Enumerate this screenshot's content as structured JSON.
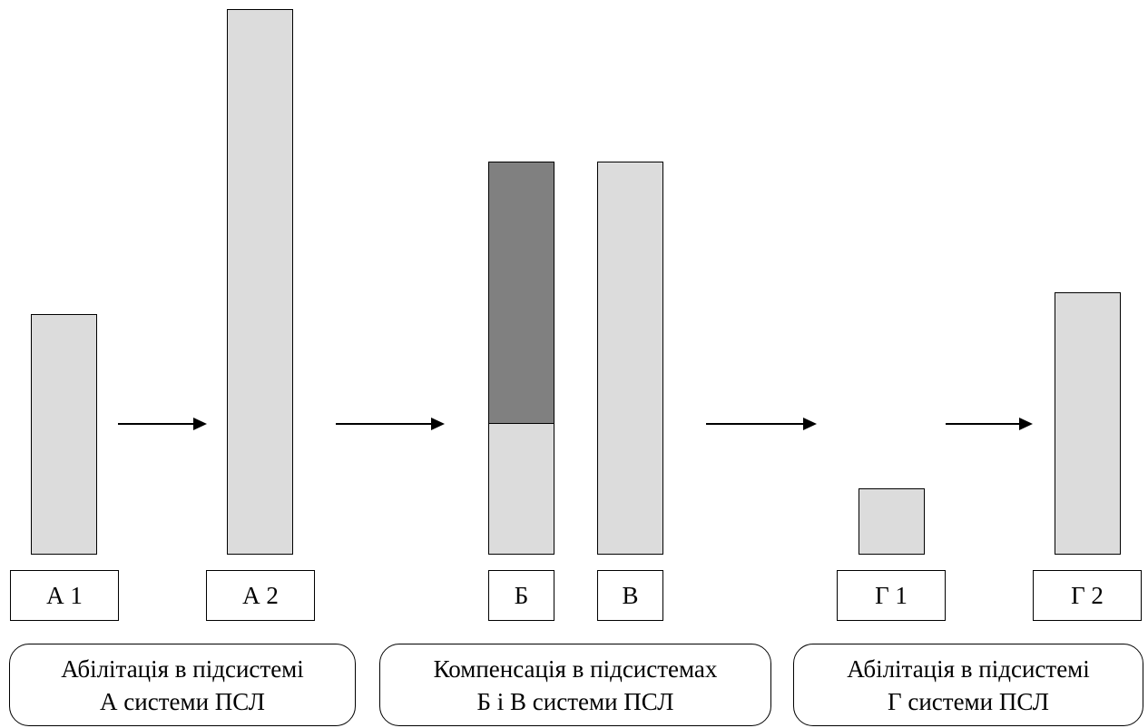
{
  "labels": {
    "a1": "А 1",
    "a2": "А 2",
    "b": "Б",
    "v": "В",
    "g1": "Г 1",
    "g2": "Г 2"
  },
  "groups": [
    {
      "line1": "Абілітація в підсистемі",
      "line2": "А системи ПСЛ"
    },
    {
      "line1": "Компенсація в підсистемах",
      "line2": "Б і В системи ПСЛ"
    },
    {
      "line1": "Абілітація в підсистемі",
      "line2": "Г системи ПСЛ"
    }
  ],
  "colors": {
    "bar_fill": "#dcdcdc",
    "bar_dark_fill": "#808080",
    "stroke": "#000000"
  }
}
